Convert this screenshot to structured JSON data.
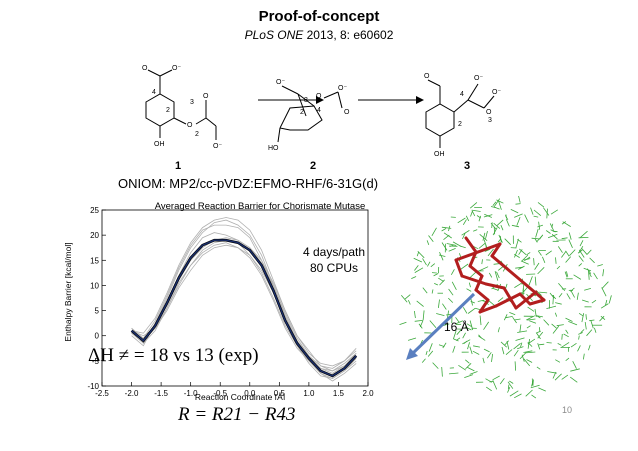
{
  "slide": {
    "title": "Proof-of-concept",
    "citation_journal": "PLoS ONE",
    "citation_rest": " 2013, 8: e60602",
    "method": "ONIOM: MP2/cc-pVDZ:EFMO-RHF/6-31G(d)",
    "page_number": "10"
  },
  "scheme": {
    "compounds": [
      "1",
      "2",
      "3"
    ],
    "atom_numbers": [
      "1",
      "2",
      "3",
      "4"
    ],
    "atom_labels": {
      "O": "O",
      "O_minus": "O⁻",
      "OH": "OH",
      "HO": "HO"
    }
  },
  "plot": {
    "title": "Averaged Reaction Barrier for Chorismate Mutase",
    "info_line1": "4 days/path",
    "info_line2": "80 CPUs",
    "dh_text": "ΔH ≠ = 18 vs 13 (exp)",
    "rc_text": "R = R21 − R43",
    "colors": {
      "mean": "#1a2f6e",
      "paths": "#b0b0b0"
    }
  },
  "structure": {
    "scale_label": "16 Å",
    "colors": {
      "environment": "#3aa83a",
      "ligand": "#b21e1e",
      "arrow": "#5a7fc0"
    }
  },
  "chart_data": {
    "type": "line",
    "title": "Averaged Reaction Barrier for Chorismate Mutase",
    "xlabel": "Reaction Coordinate [Å]",
    "ylabel": "Enthalpy Barrier [kcal/mol]",
    "xlim": [
      -2.5,
      2.0
    ],
    "ylim": [
      -10,
      25
    ],
    "xticks": [
      -2.5,
      -2.0,
      -1.5,
      -1.0,
      -0.5,
      0.0,
      0.5,
      1.0,
      1.5,
      2.0
    ],
    "yticks": [
      -10,
      -5,
      0,
      5,
      10,
      15,
      20,
      25
    ],
    "x": [
      -2.0,
      -1.8,
      -1.6,
      -1.4,
      -1.2,
      -1.0,
      -0.8,
      -0.6,
      -0.4,
      -0.2,
      0.0,
      0.2,
      0.4,
      0.6,
      0.8,
      1.0,
      1.2,
      1.4,
      1.6,
      1.8
    ],
    "series": [
      {
        "role": "mean",
        "values": [
          1.0,
          -1.0,
          2.0,
          6.5,
          11.5,
          15.5,
          18.0,
          19.0,
          19.0,
          18.5,
          17.0,
          14.0,
          9.0,
          3.0,
          -1.5,
          -4.5,
          -7.0,
          -8.0,
          -6.5,
          -4.0
        ]
      },
      {
        "role": "path",
        "values": [
          0.5,
          -1.5,
          2.5,
          7.5,
          13.0,
          17.5,
          20.5,
          22.5,
          23.0,
          22.0,
          20.0,
          16.0,
          10.0,
          4.0,
          -1.0,
          -5.0,
          -7.5,
          -8.5,
          -7.0,
          -5.0
        ]
      },
      {
        "role": "path",
        "values": [
          1.5,
          -0.5,
          3.0,
          8.0,
          13.5,
          18.0,
          21.0,
          22.0,
          22.0,
          21.5,
          19.5,
          15.0,
          9.5,
          3.5,
          -1.0,
          -4.0,
          -6.5,
          -7.5,
          -6.0,
          -3.5
        ]
      },
      {
        "role": "path",
        "values": [
          1.0,
          0.0,
          1.5,
          5.0,
          9.5,
          13.0,
          16.0,
          17.5,
          18.0,
          17.5,
          16.0,
          13.0,
          8.5,
          3.0,
          -2.0,
          -5.5,
          -8.0,
          -8.5,
          -7.0,
          -4.5
        ]
      },
      {
        "role": "path",
        "values": [
          0.5,
          -1.0,
          2.0,
          6.0,
          11.0,
          15.0,
          17.5,
          19.0,
          19.5,
          19.0,
          17.5,
          14.5,
          10.0,
          4.5,
          -0.5,
          -4.0,
          -6.0,
          -6.5,
          -5.0,
          -3.0
        ]
      },
      {
        "role": "path",
        "values": [
          1.5,
          -1.5,
          1.0,
          5.5,
          10.5,
          14.0,
          16.5,
          18.0,
          18.5,
          17.5,
          15.5,
          12.0,
          7.0,
          1.5,
          -2.5,
          -5.0,
          -7.5,
          -9.0,
          -7.5,
          -5.5
        ]
      },
      {
        "role": "path",
        "values": [
          0.0,
          -2.0,
          2.5,
          7.0,
          12.0,
          16.5,
          19.5,
          20.5,
          20.0,
          19.0,
          17.5,
          15.0,
          10.5,
          5.0,
          0.0,
          -3.5,
          -5.5,
          -6.0,
          -5.0,
          -2.5
        ]
      },
      {
        "role": "path",
        "values": [
          1.0,
          0.5,
          3.5,
          8.5,
          14.0,
          18.5,
          21.5,
          23.0,
          23.5,
          23.0,
          21.0,
          17.0,
          11.0,
          5.0,
          0.0,
          -3.0,
          -6.0,
          -7.0,
          -6.0,
          -4.0
        ]
      },
      {
        "role": "path",
        "values": [
          0.5,
          -1.0,
          1.5,
          5.5,
          10.0,
          14.0,
          17.0,
          18.5,
          19.0,
          18.5,
          16.0,
          12.5,
          7.5,
          2.0,
          -2.0,
          -5.0,
          -6.5,
          -7.0,
          -5.5,
          -3.5
        ]
      }
    ]
  }
}
